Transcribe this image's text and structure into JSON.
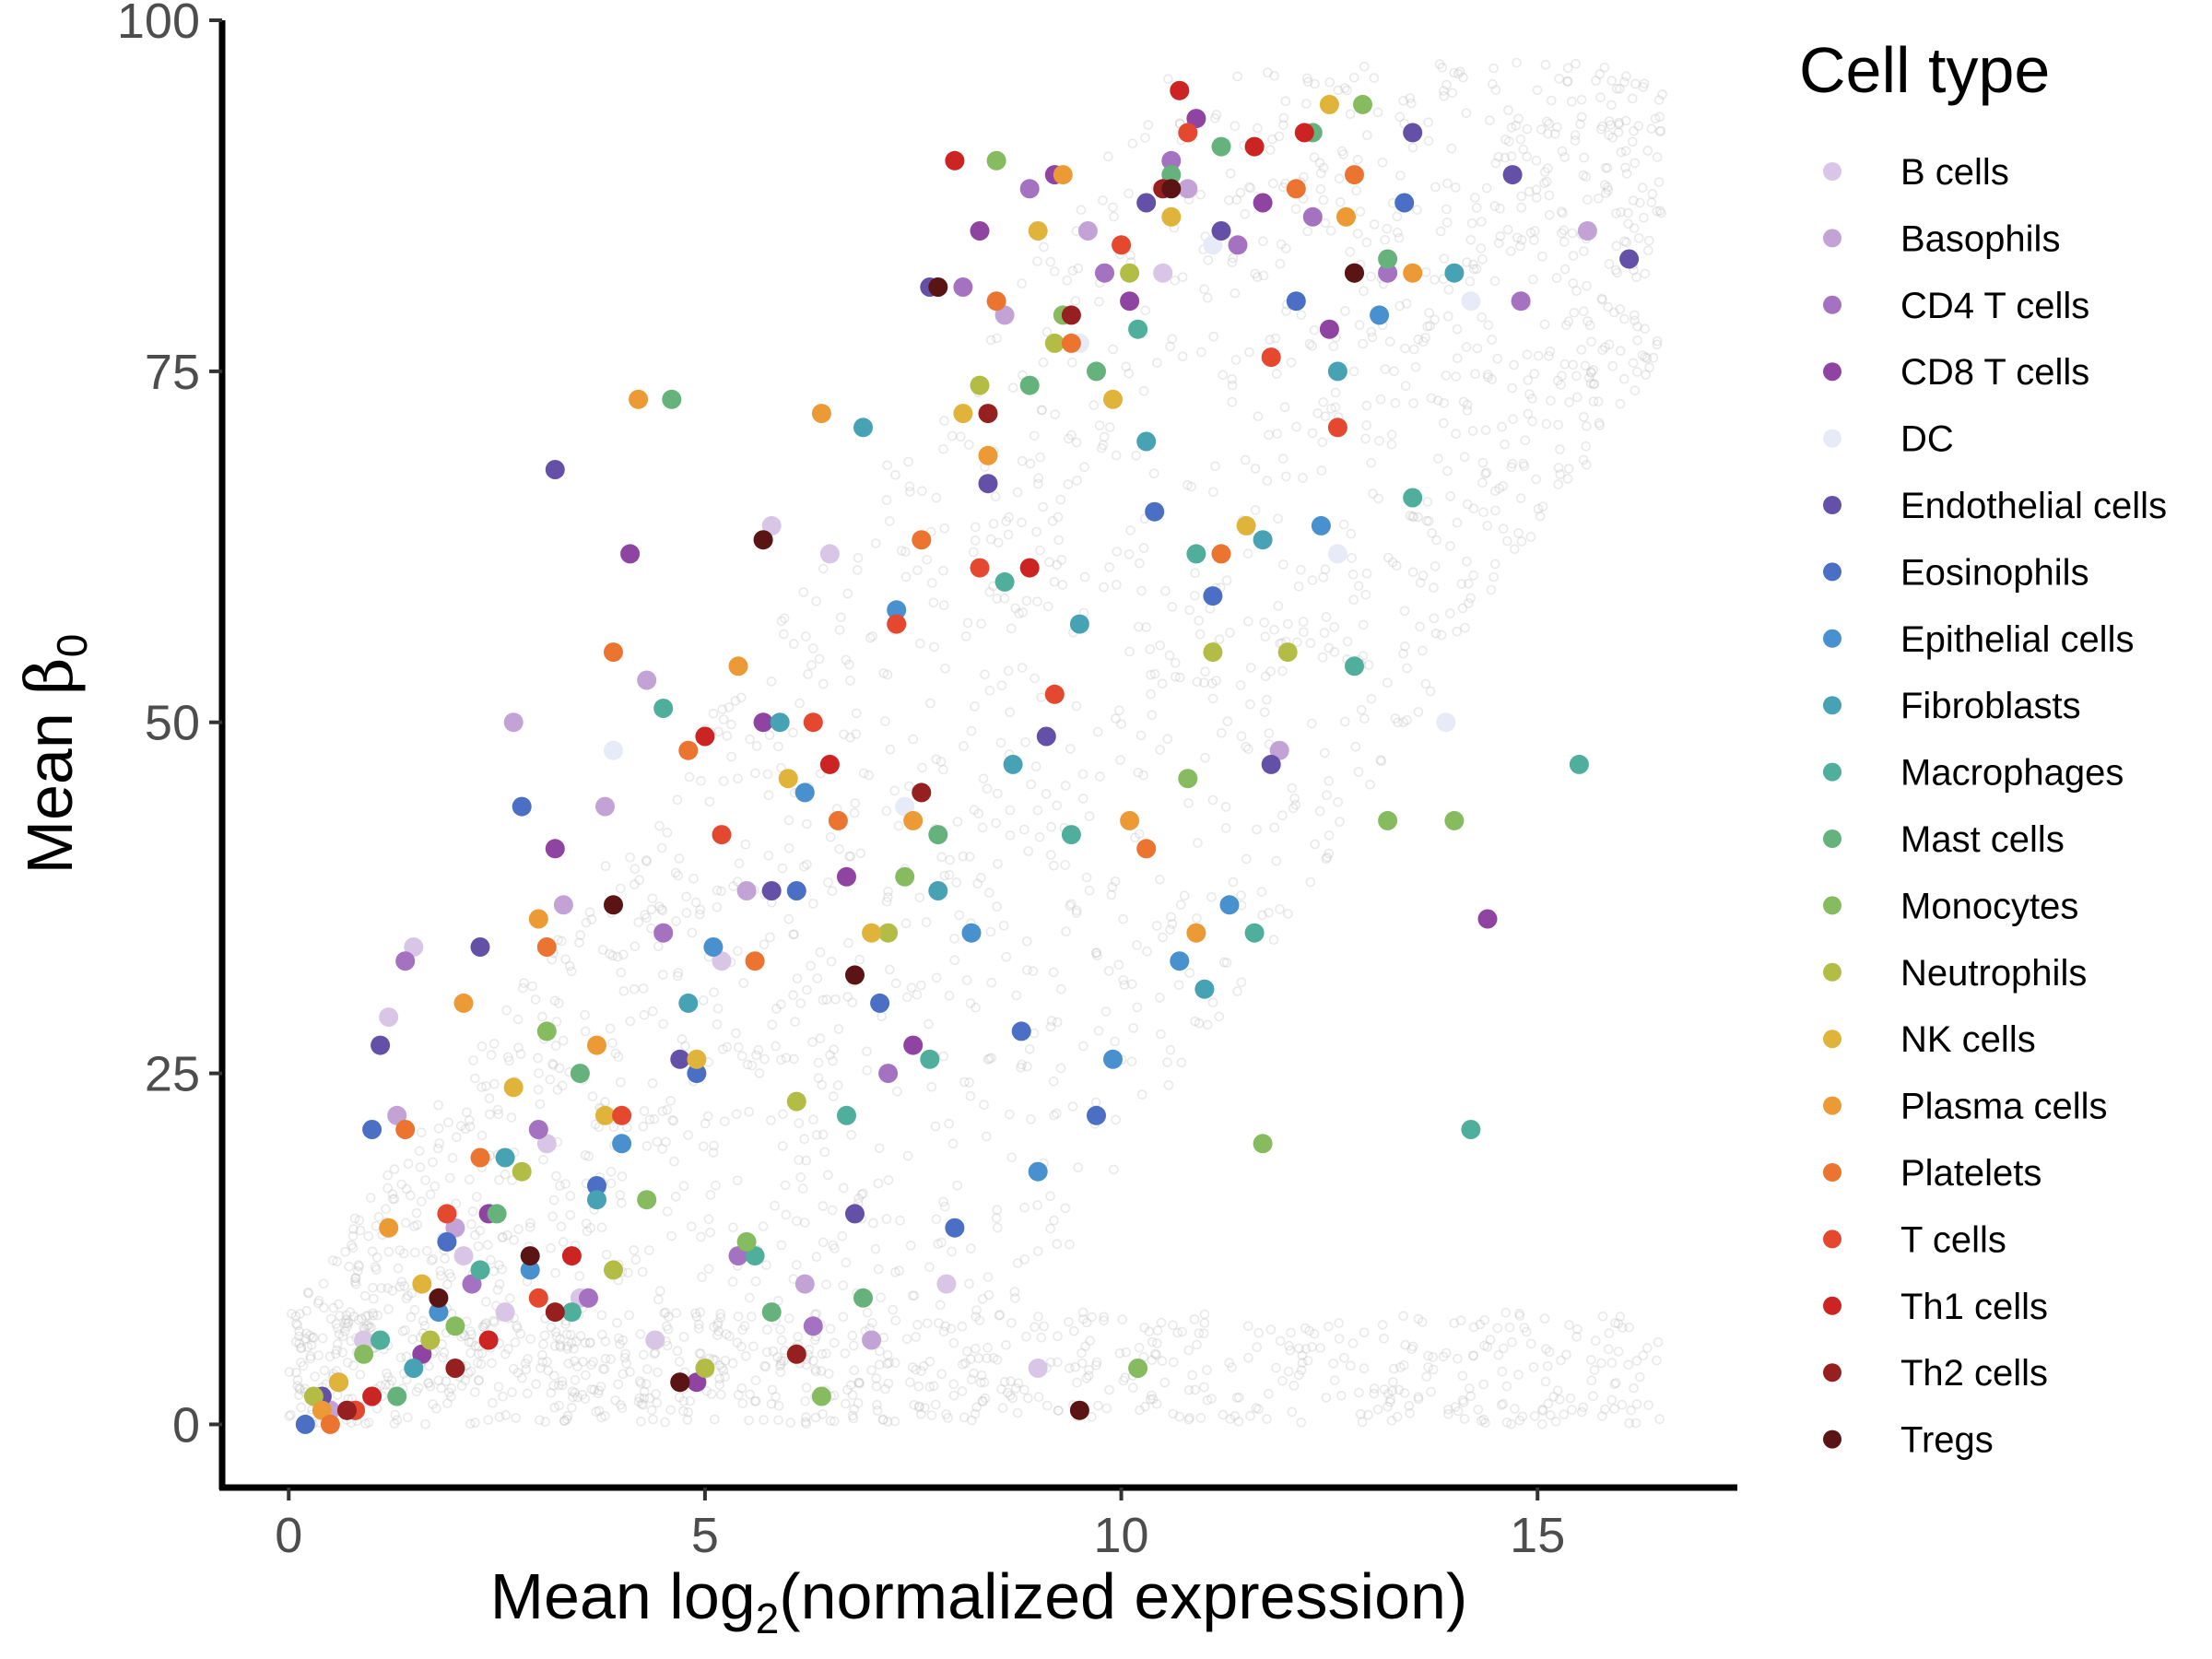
{
  "chart_data": {
    "type": "scatter",
    "title": "",
    "xlabel": {
      "prefix": "Mean log",
      "subscript": "2",
      "suffix": "(normalized expression)"
    },
    "ylabel": {
      "prefix": "Mean  ",
      "symbol": "β",
      "subscript": "0"
    },
    "xlim": [
      -0.8,
      17.4
    ],
    "ylim": [
      -4.5,
      100
    ],
    "x_ticks": [
      0,
      5,
      10,
      15
    ],
    "y_ticks": [
      0,
      25,
      50,
      75,
      100
    ],
    "grid": false,
    "background_points": {
      "color": "#bfbfbf",
      "description_note": "dense semi-transparent grey cloud of all genes"
    },
    "legend": {
      "title": "Cell type",
      "placement": "right",
      "entries": [
        {
          "name": "B cells",
          "color": "#d9c6e6"
        },
        {
          "name": "Basophils",
          "color": "#c3a3d6"
        },
        {
          "name": "CD4 T cells",
          "color": "#a472c0"
        },
        {
          "name": "CD8 T cells",
          "color": "#8e44a0"
        },
        {
          "name": "DC",
          "color": "#e6ebf7"
        },
        {
          "name": "Endothelial cells",
          "color": "#6550a8"
        },
        {
          "name": "Eosinophils",
          "color": "#4a6fc4"
        },
        {
          "name": "Epithelial cells",
          "color": "#4990cf"
        },
        {
          "name": "Fibroblasts",
          "color": "#47a3b4"
        },
        {
          "name": "Macrophages",
          "color": "#4fae9c"
        },
        {
          "name": "Mast cells",
          "color": "#65b27c"
        },
        {
          "name": "Monocytes",
          "color": "#86bb60"
        },
        {
          "name": "Neutrophils",
          "color": "#b3bd45"
        },
        {
          "name": "NK cells",
          "color": "#e0b43a"
        },
        {
          "name": "Plasma cells",
          "color": "#ec9a36"
        },
        {
          "name": "Platelets",
          "color": "#ea7430"
        },
        {
          "name": "T cells",
          "color": "#e4492f"
        },
        {
          "name": "Th1 cells",
          "color": "#cc2423"
        },
        {
          "name": "Th2 cells",
          "color": "#96201f"
        },
        {
          "name": "Tregs",
          "color": "#5a1414"
        }
      ]
    },
    "series": [
      {
        "name": "B cells",
        "x": [
          0.3,
          0.9,
          1.2,
          1.5,
          2.1,
          2.6,
          3.1,
          3.5,
          4.4,
          5.2,
          5.8,
          6.5,
          7.9,
          9.0,
          10.5,
          11.8
        ],
        "y": [
          2,
          6,
          29,
          34,
          12,
          8,
          20,
          9,
          6,
          33,
          64,
          62,
          10,
          4,
          82,
          76
        ]
      },
      {
        "name": "Basophils",
        "x": [
          0.5,
          1.3,
          2.0,
          2.7,
          3.3,
          3.8,
          4.3,
          5.5,
          6.2,
          7.0,
          8.6,
          9.6,
          10.8,
          11.9,
          15.6
        ],
        "y": [
          1,
          22,
          14,
          50,
          37,
          44,
          53,
          38,
          10,
          6,
          79,
          85,
          88,
          48,
          85
        ]
      },
      {
        "name": "CD4 T cells",
        "x": [
          0.6,
          1.4,
          2.2,
          3.0,
          3.6,
          4.5,
          5.4,
          6.3,
          7.2,
          8.1,
          8.9,
          9.8,
          10.6,
          11.4,
          12.3,
          13.2,
          14.8
        ],
        "y": [
          3,
          33,
          10,
          21,
          9,
          35,
          12,
          7,
          25,
          81,
          88,
          82,
          90,
          84,
          86,
          82,
          80
        ]
      },
      {
        "name": "CD8 T cells",
        "x": [
          0.8,
          1.6,
          2.4,
          3.2,
          4.1,
          4.9,
          5.7,
          6.7,
          7.5,
          8.3,
          9.2,
          10.1,
          10.9,
          11.7,
          12.5,
          14.4
        ],
        "y": [
          1,
          5,
          15,
          41,
          62,
          3,
          50,
          39,
          27,
          85,
          89,
          80,
          93,
          87,
          78,
          36
        ]
      },
      {
        "name": "DC",
        "x": [
          3.9,
          7.4,
          9.5,
          11.1,
          12.6,
          13.9,
          14.2
        ],
        "y": [
          48,
          44,
          77,
          84,
          62,
          50,
          80
        ]
      },
      {
        "name": "Endothelial cells",
        "x": [
          0.4,
          1.1,
          2.3,
          3.2,
          4.7,
          5.8,
          6.8,
          7.7,
          8.4,
          9.1,
          10.3,
          11.2,
          11.8,
          12.8,
          13.5,
          14.7,
          16.1
        ],
        "y": [
          2,
          27,
          34,
          68,
          26,
          38,
          15,
          81,
          67,
          49,
          87,
          85,
          47,
          82,
          92,
          89,
          83
        ]
      },
      {
        "name": "Eosinophils",
        "x": [
          0.2,
          1.0,
          1.9,
          2.8,
          3.7,
          4.9,
          6.1,
          7.1,
          8.0,
          8.8,
          9.7,
          10.4,
          11.1,
          12.1,
          13.4
        ],
        "y": [
          0,
          21,
          13,
          44,
          17,
          25,
          38,
          30,
          14,
          28,
          22,
          65,
          59,
          80,
          87
        ]
      },
      {
        "name": "Epithelial cells",
        "x": [
          0.7,
          1.8,
          2.9,
          4.0,
          5.1,
          6.2,
          7.3,
          8.2,
          9.0,
          9.9,
          10.7,
          11.3,
          12.4,
          13.1
        ],
        "y": [
          1,
          8,
          11,
          20,
          34,
          45,
          58,
          35,
          18,
          26,
          33,
          37,
          64,
          79
        ]
      },
      {
        "name": "Fibroblasts",
        "x": [
          1.5,
          2.6,
          3.7,
          4.8,
          5.9,
          6.9,
          7.8,
          8.7,
          9.5,
          10.3,
          11.0,
          11.7,
          12.6,
          14.0
        ],
        "y": [
          4,
          19,
          16,
          30,
          50,
          71,
          38,
          47,
          57,
          70,
          31,
          63,
          75,
          82
        ]
      },
      {
        "name": "Macrophages",
        "x": [
          1.1,
          2.3,
          3.4,
          4.5,
          5.6,
          6.7,
          7.7,
          8.6,
          9.4,
          10.2,
          10.9,
          11.6,
          12.8,
          13.5,
          15.5,
          14.2
        ],
        "y": [
          6,
          11,
          8,
          51,
          12,
          22,
          26,
          60,
          42,
          78,
          62,
          35,
          54,
          66,
          47,
          21
        ]
      },
      {
        "name": "Mast cells",
        "x": [
          1.3,
          2.5,
          3.5,
          4.6,
          5.8,
          6.9,
          7.8,
          8.9,
          9.7,
          10.6,
          11.2,
          12.3,
          13.2
        ],
        "y": [
          2,
          15,
          25,
          73,
          8,
          9,
          42,
          74,
          75,
          89,
          91,
          92,
          83
        ]
      },
      {
        "name": "Monocytes",
        "x": [
          0.9,
          2.0,
          3.1,
          4.3,
          5.5,
          6.4,
          7.4,
          8.5,
          9.3,
          10.2,
          10.8,
          11.7,
          13.2,
          14.0,
          12.9
        ],
        "y": [
          5,
          7,
          28,
          16,
          13,
          2,
          39,
          90,
          79,
          4,
          46,
          20,
          43,
          43,
          94
        ]
      },
      {
        "name": "Neutrophils",
        "x": [
          0.3,
          1.7,
          2.8,
          3.9,
          5.0,
          6.1,
          7.2,
          8.3,
          9.2,
          10.1,
          11.1,
          12.0
        ],
        "y": [
          2,
          6,
          18,
          11,
          4,
          23,
          35,
          74,
          77,
          82,
          55,
          55
        ]
      },
      {
        "name": "NK cells",
        "x": [
          0.6,
          1.6,
          2.7,
          3.8,
          4.9,
          6.0,
          7.0,
          8.1,
          9.0,
          9.9,
          10.6,
          11.5,
          12.5
        ],
        "y": [
          3,
          10,
          24,
          22,
          26,
          46,
          35,
          72,
          85,
          73,
          86,
          64,
          94
        ]
      },
      {
        "name": "Plasma cells",
        "x": [
          0.4,
          1.2,
          2.1,
          3.0,
          3.7,
          4.2,
          5.4,
          6.4,
          7.5,
          8.4,
          9.3,
          10.1,
          10.9,
          11.6,
          12.7,
          13.5
        ],
        "y": [
          1,
          14,
          30,
          36,
          27,
          73,
          54,
          72,
          43,
          69,
          89,
          43,
          35,
          91,
          86,
          82
        ]
      },
      {
        "name": "Platelets",
        "x": [
          0.5,
          1.4,
          2.3,
          3.1,
          3.9,
          4.8,
          5.6,
          6.6,
          7.6,
          8.5,
          9.4,
          10.3,
          11.2,
          12.1,
          12.8
        ],
        "y": [
          0,
          21,
          19,
          34,
          55,
          48,
          33,
          43,
          63,
          80,
          77,
          41,
          62,
          88,
          89
        ]
      },
      {
        "name": "T cells",
        "x": [
          0.8,
          1.9,
          3.0,
          4.0,
          5.2,
          6.3,
          7.3,
          8.3,
          9.2,
          10.0,
          10.8,
          11.8,
          12.6
        ],
        "y": [
          1,
          15,
          9,
          22,
          42,
          50,
          57,
          61,
          52,
          84,
          92,
          76,
          71
        ]
      },
      {
        "name": "Th1 cells",
        "x": [
          1.0,
          2.4,
          3.4,
          5.0,
          6.5,
          8.0,
          8.9,
          10.7,
          11.6,
          12.2
        ],
        "y": [
          2,
          6,
          12,
          49,
          47,
          90,
          61,
          95,
          91,
          92
        ]
      },
      {
        "name": "Th2 cells",
        "x": [
          0.7,
          2.0,
          3.2,
          4.7,
          6.1,
          7.6,
          8.4,
          9.4,
          10.5
        ],
        "y": [
          1,
          4,
          8,
          3,
          5,
          45,
          72,
          79,
          88
        ]
      },
      {
        "name": "Tregs",
        "x": [
          1.8,
          2.9,
          3.9,
          4.7,
          5.7,
          6.8,
          7.8,
          9.5,
          10.6,
          12.8
        ],
        "y": [
          9,
          12,
          37,
          3,
          63,
          32,
          81,
          1,
          88,
          82
        ]
      }
    ]
  }
}
